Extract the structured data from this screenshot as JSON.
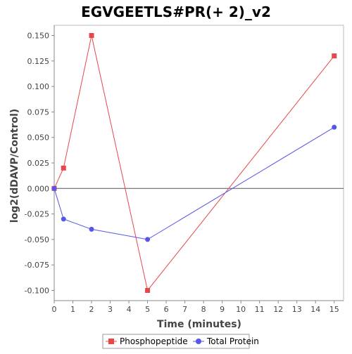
{
  "chart_data": {
    "type": "line",
    "title": "EGVGEETLS#PR(+ 2)_v2",
    "xlabel": "Time (minutes)",
    "ylabel": "log2(dDAVP/Control)",
    "xlim": [
      0,
      15.5
    ],
    "ylim": [
      -0.11,
      0.16
    ],
    "xticks": [
      0,
      1,
      2,
      3,
      4,
      5,
      6,
      7,
      8,
      9,
      10,
      11,
      12,
      13,
      14,
      15
    ],
    "xtick_labels": [
      "0",
      "1",
      "2",
      "3",
      "4",
      "5",
      "6",
      "7",
      "8",
      "9",
      "10",
      "11",
      "12",
      "13",
      "14",
      "15"
    ],
    "yticks": [
      -0.1,
      -0.075,
      -0.05,
      -0.025,
      0.0,
      0.025,
      0.05,
      0.075,
      0.1,
      0.125,
      0.15
    ],
    "ytick_labels": [
      "-0.100",
      "-0.075",
      "-0.050",
      "-0.025",
      "0.000",
      "0.025",
      "0.050",
      "0.075",
      "0.100",
      "0.125",
      "0.150"
    ],
    "zero_line": true,
    "grid": false,
    "legend_position": "bottom",
    "series": [
      {
        "name": "Phosphopeptide",
        "color": "#e8474a",
        "marker": "square",
        "x": [
          0,
          0.5,
          2,
          5,
          15
        ],
        "y": [
          0.0,
          0.02,
          0.15,
          -0.1,
          0.13
        ]
      },
      {
        "name": "Total Protein",
        "color": "#5555e8",
        "marker": "circle",
        "x": [
          0,
          0.5,
          2,
          5,
          15
        ],
        "y": [
          0.0,
          -0.03,
          -0.04,
          -0.05,
          0.06
        ]
      }
    ]
  }
}
